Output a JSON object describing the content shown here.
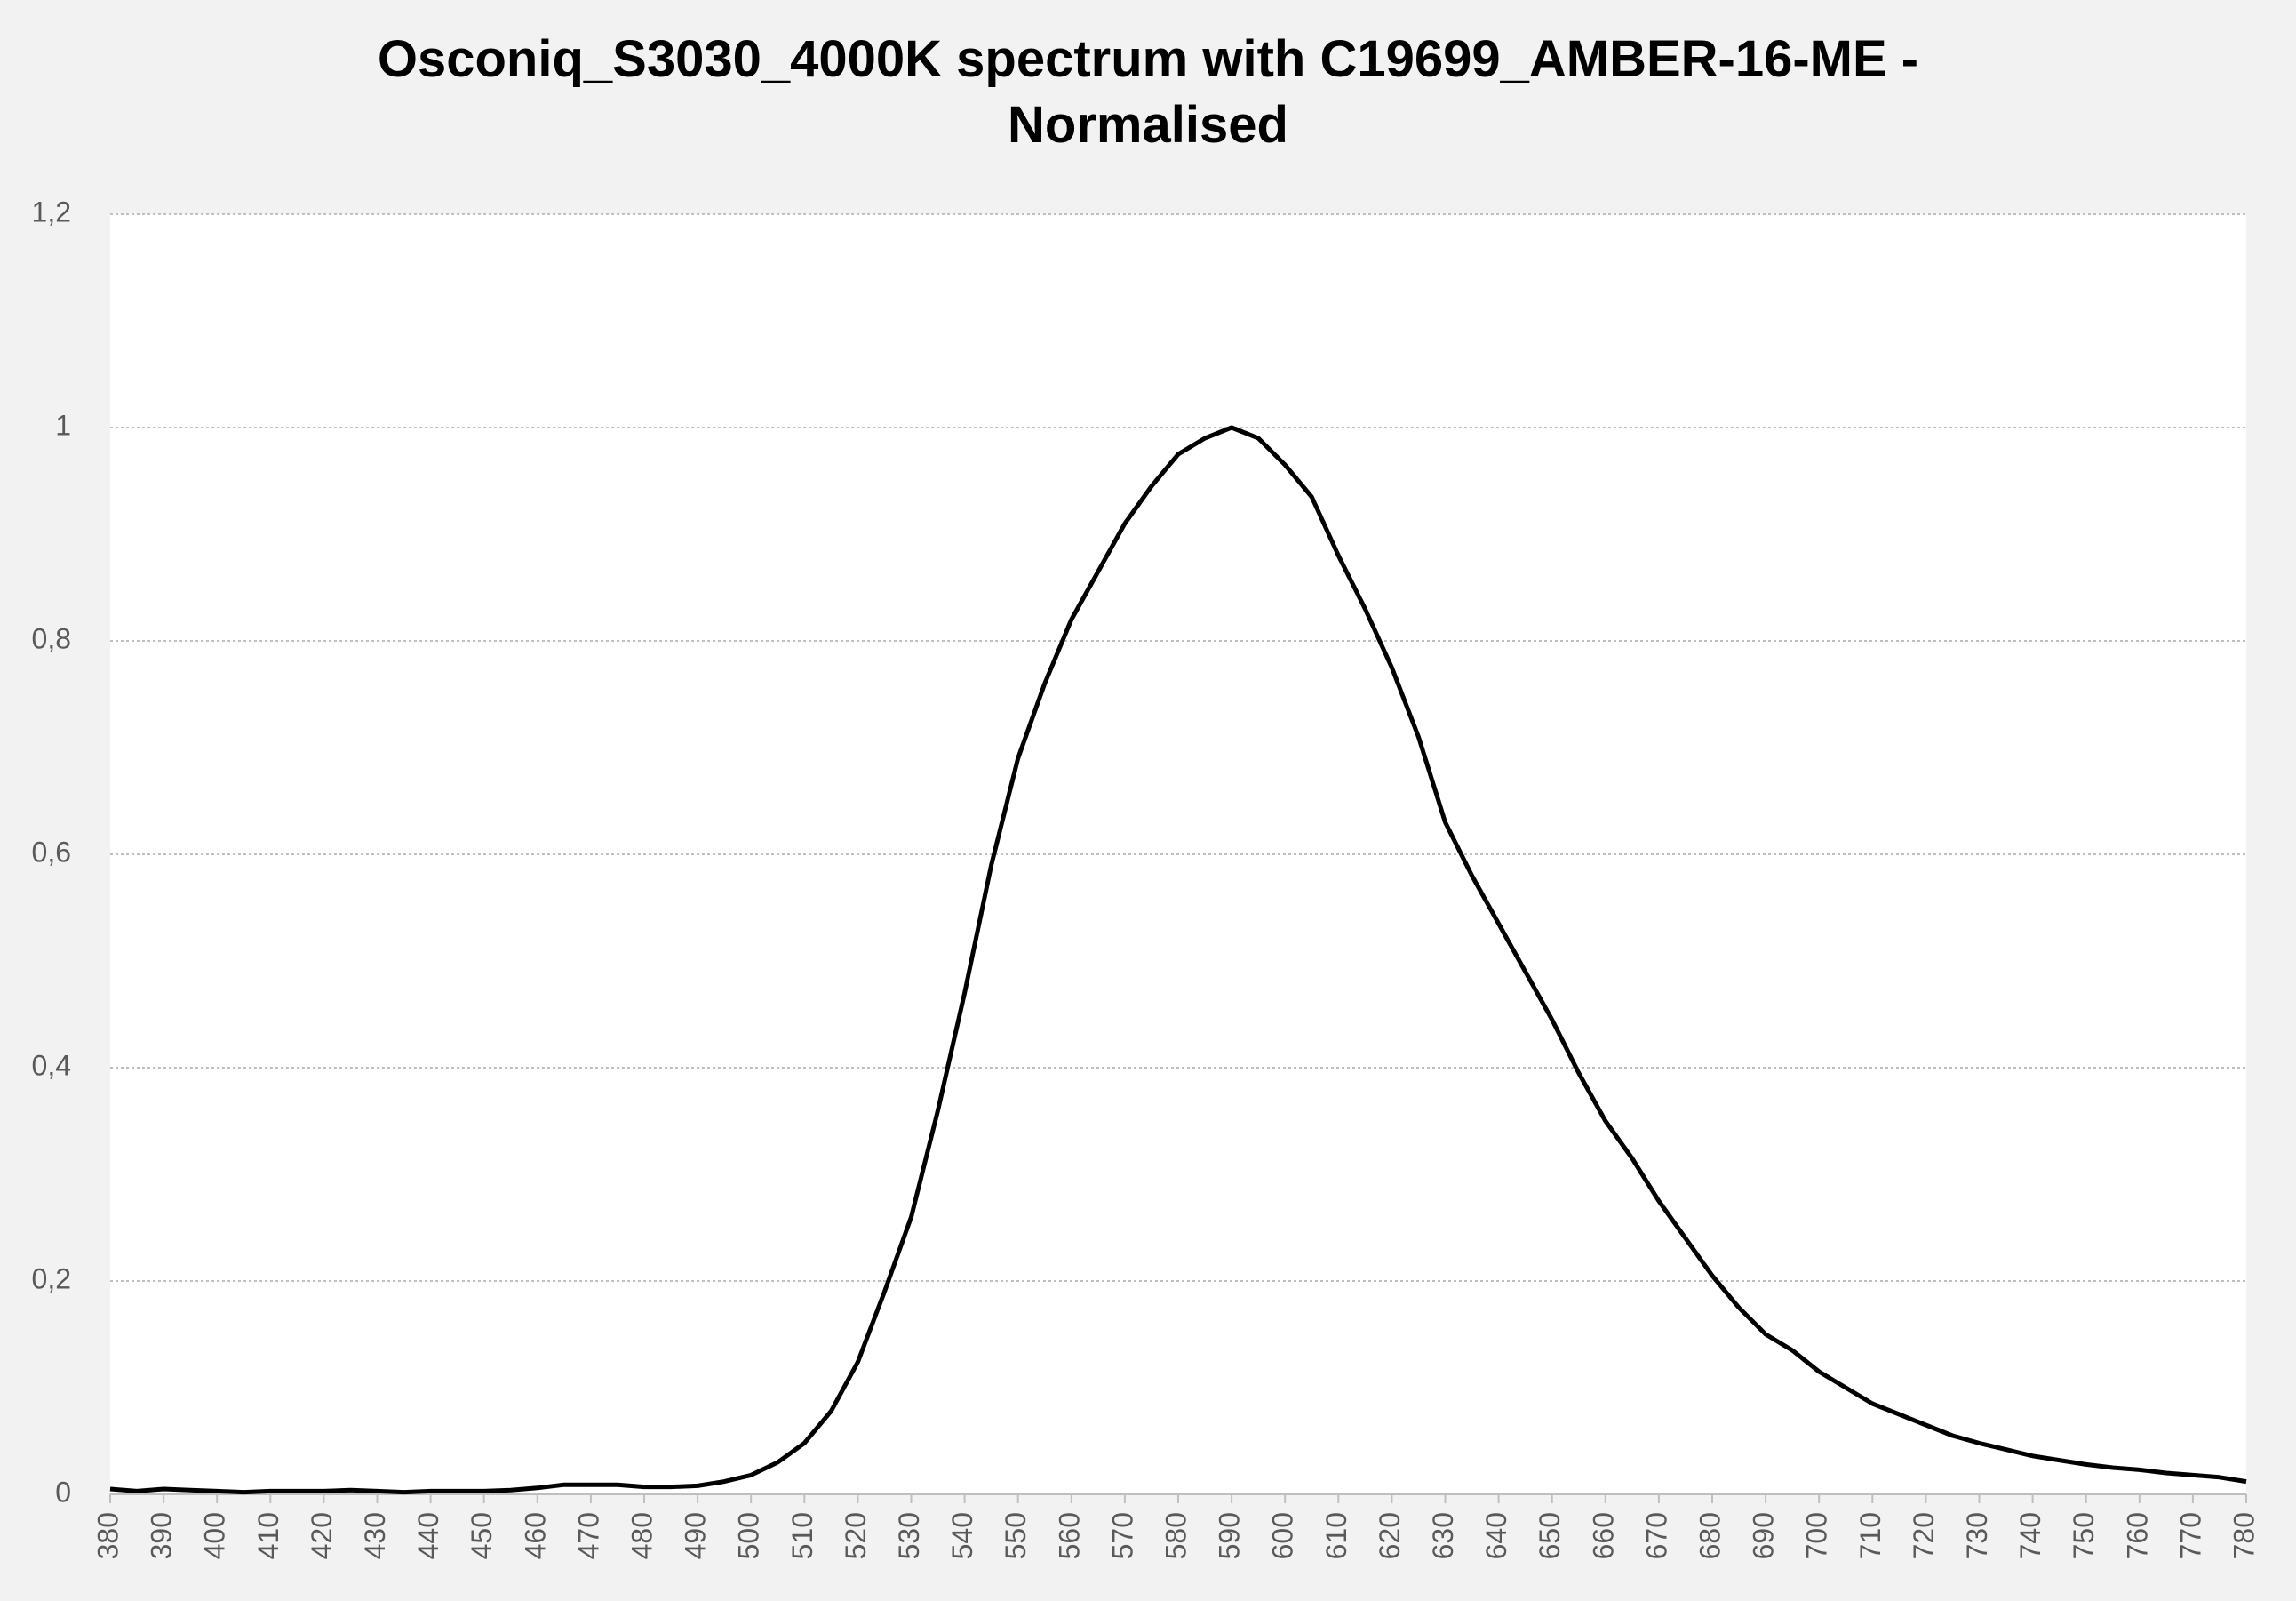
{
  "chart_data": {
    "type": "line",
    "title": "Osconiq_S3030_4000K spectrum with C19699_AMBER-16-ME - Normalised",
    "x": [
      380,
      385,
      390,
      395,
      400,
      405,
      410,
      415,
      420,
      425,
      430,
      435,
      440,
      445,
      450,
      455,
      460,
      465,
      470,
      475,
      480,
      485,
      490,
      495,
      500,
      505,
      510,
      515,
      520,
      525,
      530,
      535,
      540,
      545,
      550,
      555,
      560,
      565,
      570,
      575,
      580,
      585,
      590,
      595,
      600,
      605,
      610,
      615,
      620,
      625,
      630,
      635,
      640,
      645,
      650,
      655,
      660,
      665,
      670,
      675,
      680,
      685,
      690,
      695,
      700,
      705,
      710,
      715,
      720,
      725,
      730,
      735,
      740,
      745,
      750,
      755,
      760,
      765,
      770,
      775,
      780
    ],
    "series": [
      {
        "color": "#000000",
        "values": [
          0.005,
          0.003,
          0.005,
          0.004,
          0.003,
          0.002,
          0.003,
          0.003,
          0.003,
          0.004,
          0.003,
          0.002,
          0.003,
          0.003,
          0.003,
          0.004,
          0.006,
          0.009,
          0.009,
          0.009,
          0.007,
          0.007,
          0.008,
          0.012,
          0.018,
          0.03,
          0.048,
          0.078,
          0.124,
          0.19,
          0.26,
          0.36,
          0.47,
          0.59,
          0.69,
          0.76,
          0.82,
          0.865,
          0.91,
          0.945,
          0.975,
          0.99,
          1.0,
          0.99,
          0.965,
          0.935,
          0.88,
          0.83,
          0.775,
          0.71,
          0.63,
          0.58,
          0.535,
          0.49,
          0.445,
          0.395,
          0.35,
          0.315,
          0.275,
          0.24,
          0.205,
          0.175,
          0.15,
          0.135,
          0.115,
          0.1,
          0.085,
          0.075,
          0.065,
          0.055,
          0.048,
          0.042,
          0.036,
          0.032,
          0.028,
          0.025,
          0.023,
          0.02,
          0.018,
          0.016,
          0.012
        ]
      }
    ],
    "xlim": [
      380,
      780
    ],
    "xticks": [
      380,
      390,
      400,
      410,
      420,
      430,
      440,
      450,
      460,
      470,
      480,
      490,
      500,
      510,
      520,
      530,
      540,
      550,
      560,
      570,
      580,
      590,
      600,
      610,
      620,
      630,
      640,
      650,
      660,
      670,
      680,
      690,
      700,
      710,
      720,
      730,
      740,
      750,
      760,
      770,
      780
    ],
    "ylim": [
      0,
      1.2
    ],
    "yticks": [
      0,
      {
        "value": 0.2,
        "label": "0,2"
      },
      {
        "value": 0.4,
        "label": "0,4"
      },
      {
        "value": 0.6,
        "label": "0,6"
      },
      {
        "value": 0.8,
        "label": "0,8"
      },
      1,
      {
        "value": 1.2,
        "label": "1,2"
      }
    ],
    "grid": true
  }
}
